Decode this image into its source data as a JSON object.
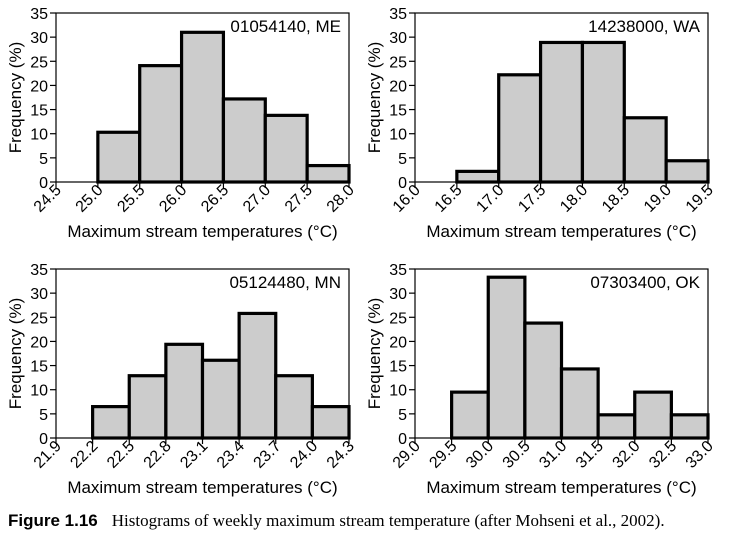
{
  "chart_data": [
    {
      "type": "bar",
      "title": "01054140, ME",
      "xlabel": "Maximum stream temperatures (°C)",
      "ylabel": "Frequency (%)",
      "ylim": [
        0,
        35
      ],
      "yticks": [
        0,
        5,
        10,
        15,
        20,
        25,
        30,
        35
      ],
      "bin_edges": [
        "24.5",
        "25.0",
        "25.5",
        "26.0",
        "26.5",
        "27.0",
        "27.5",
        "28.0"
      ],
      "values": [
        0,
        10.3,
        24.1,
        31.0,
        17.2,
        13.8,
        3.4
      ],
      "grid": false,
      "legend": "none"
    },
    {
      "type": "bar",
      "title": "14238000, WA",
      "xlabel": "Maximum stream temperatures (°C)",
      "ylabel": "Frequency (%)",
      "ylim": [
        0,
        35
      ],
      "yticks": [
        0,
        5,
        10,
        15,
        20,
        25,
        30,
        35
      ],
      "bin_edges": [
        "16.0",
        "16.5",
        "17.0",
        "17.5",
        "18.0",
        "18.5",
        "19.0",
        "19.5"
      ],
      "values": [
        0,
        2.2,
        22.2,
        28.9,
        28.9,
        13.3,
        4.4
      ],
      "grid": false,
      "legend": "none"
    },
    {
      "type": "bar",
      "title": "05124480, MN",
      "xlabel": "Maximum stream temperatures (°C)",
      "ylabel": "Frequency (%)",
      "ylim": [
        0,
        35
      ],
      "yticks": [
        0,
        5,
        10,
        15,
        20,
        25,
        30,
        35
      ],
      "bin_edges": [
        "21.9",
        "22.2",
        "22.5",
        "22.8",
        "23.1",
        "23.4",
        "23.7",
        "24.0",
        "24.3"
      ],
      "values": [
        0,
        6.5,
        12.9,
        19.4,
        16.1,
        25.8,
        12.9,
        6.5
      ],
      "grid": false,
      "legend": "none"
    },
    {
      "type": "bar",
      "title": "07303400, OK",
      "xlabel": "Maximum stream temperatures (°C)",
      "ylabel": "Frequency (%)",
      "ylim": [
        0,
        35
      ],
      "yticks": [
        0,
        5,
        10,
        15,
        20,
        25,
        30,
        35
      ],
      "bin_edges": [
        "29.0",
        "29.5",
        "30.0",
        "30.5",
        "31.0",
        "31.5",
        "32.0",
        "32.5",
        "33.0"
      ],
      "values": [
        0,
        9.5,
        33.3,
        23.8,
        14.3,
        4.8,
        9.5,
        4.8
      ],
      "grid": false,
      "legend": "none"
    }
  ],
  "caption": {
    "label": "Figure 1.16",
    "text": "Histograms of weekly maximum stream temperature (after Mohseni et al., 2002)."
  },
  "colors": {
    "bar_fill": "#cccccc",
    "bar_stroke": "#000000",
    "axis": "#000000"
  }
}
